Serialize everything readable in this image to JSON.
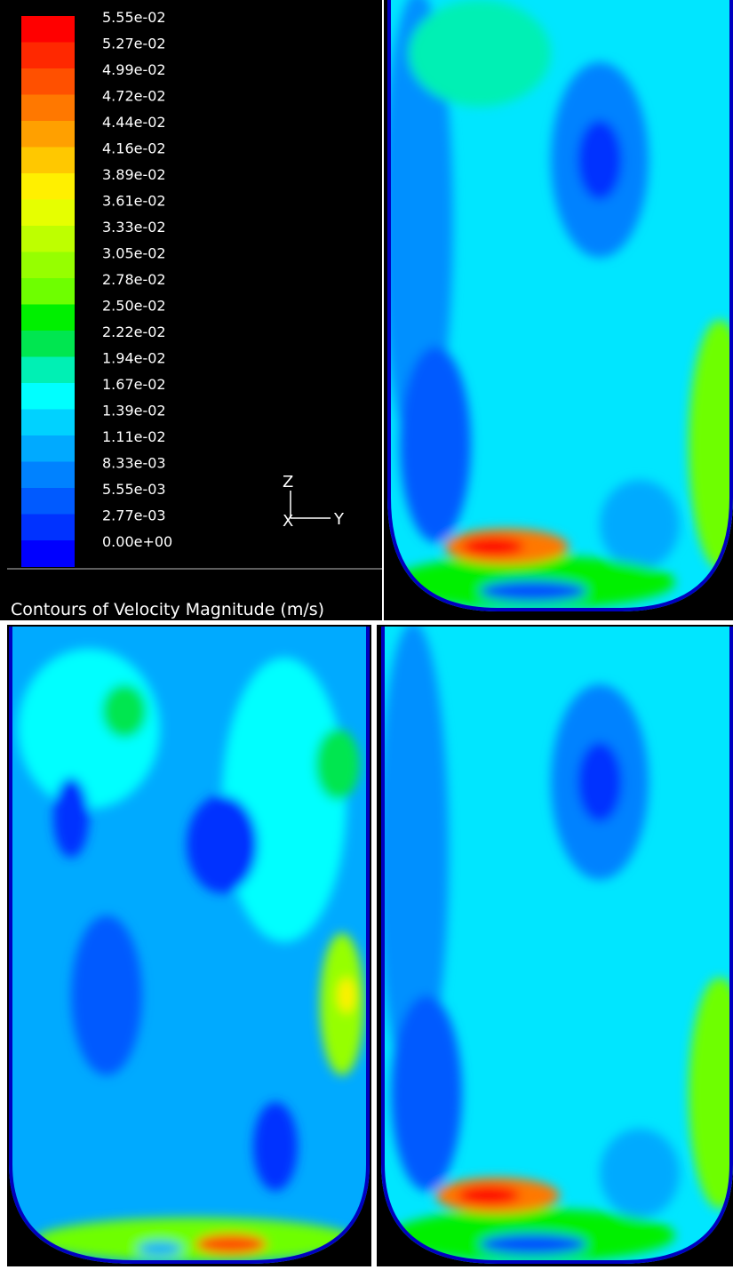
{
  "title": "Contours of Velocity Magnitude (m/s)",
  "legend": {
    "labels": [
      "5.55e-02",
      "5.27e-02",
      "4.99e-02",
      "4.72e-02",
      "4.44e-02",
      "4.16e-02",
      "3.89e-02",
      "3.61e-02",
      "3.33e-02",
      "3.05e-02",
      "2.78e-02",
      "2.50e-02",
      "2.22e-02",
      "1.94e-02",
      "1.67e-02",
      "1.39e-02",
      "1.11e-02",
      "8.33e-03",
      "5.55e-03",
      "2.77e-03",
      "0.00e+00"
    ],
    "colors": [
      "#ff0000",
      "#ff2800",
      "#ff5000",
      "#ff7800",
      "#ffa000",
      "#ffc800",
      "#fff000",
      "#e6ff00",
      "#beff00",
      "#96ff00",
      "#6eff00",
      "#00f000",
      "#00e650",
      "#00f0b4",
      "#00ffff",
      "#00d2ff",
      "#00aaff",
      "#0082ff",
      "#005aff",
      "#0032ff",
      "#0000ff"
    ]
  },
  "axes": {
    "z": "Z",
    "x": "X",
    "y": "Y"
  }
}
